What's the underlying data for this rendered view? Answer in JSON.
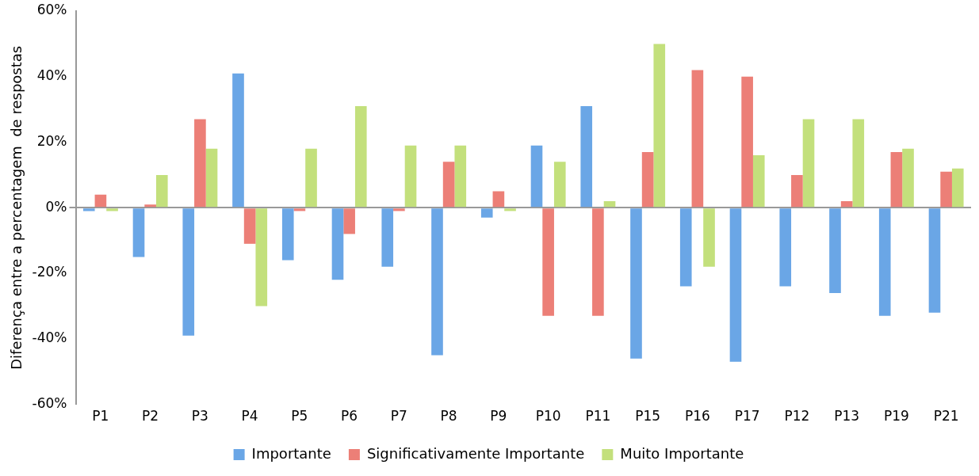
{
  "chart_data": {
    "type": "bar",
    "ylabel": "Diferença entre a percentagem  de respostas",
    "categories": [
      "P1",
      "P2",
      "P3",
      "P4",
      "P5",
      "P6",
      "P7",
      "P8",
      "P9",
      "P10",
      "P11",
      "P15",
      "P16",
      "P17",
      "P12",
      "P13",
      "P19",
      "P21"
    ],
    "series": [
      {
        "name": "Importante",
        "color": "#6aa6e6",
        "values": [
          -1,
          -15,
          -39,
          41,
          -16,
          -22,
          -18,
          -45,
          -3,
          19,
          31,
          -46,
          -24,
          -47,
          -24,
          -26,
          -33,
          -32
        ]
      },
      {
        "name": "Significativamente Importante",
        "color": "#ec7f77",
        "values": [
          4,
          1,
          27,
          -11,
          -1,
          -8,
          -1,
          14,
          5,
          -33,
          -33,
          17,
          42,
          40,
          10,
          2,
          17,
          11
        ]
      },
      {
        "name": "Muito Importante",
        "color": "#c3e07c",
        "values": [
          -1,
          10,
          18,
          -30,
          18,
          31,
          19,
          19,
          -1,
          14,
          2,
          50,
          -18,
          16,
          27,
          27,
          18,
          12
        ]
      }
    ],
    "ylim": [
      -60,
      60
    ],
    "yticks": [
      {
        "value": -60,
        "label": "-60%"
      },
      {
        "value": -40,
        "label": "-40%"
      },
      {
        "value": -20,
        "label": "-20%"
      },
      {
        "value": 0,
        "label": "0%"
      },
      {
        "value": 20,
        "label": "20%"
      },
      {
        "value": 40,
        "label": "40%"
      },
      {
        "value": 60,
        "label": "60%"
      }
    ],
    "legend": "bottom"
  }
}
